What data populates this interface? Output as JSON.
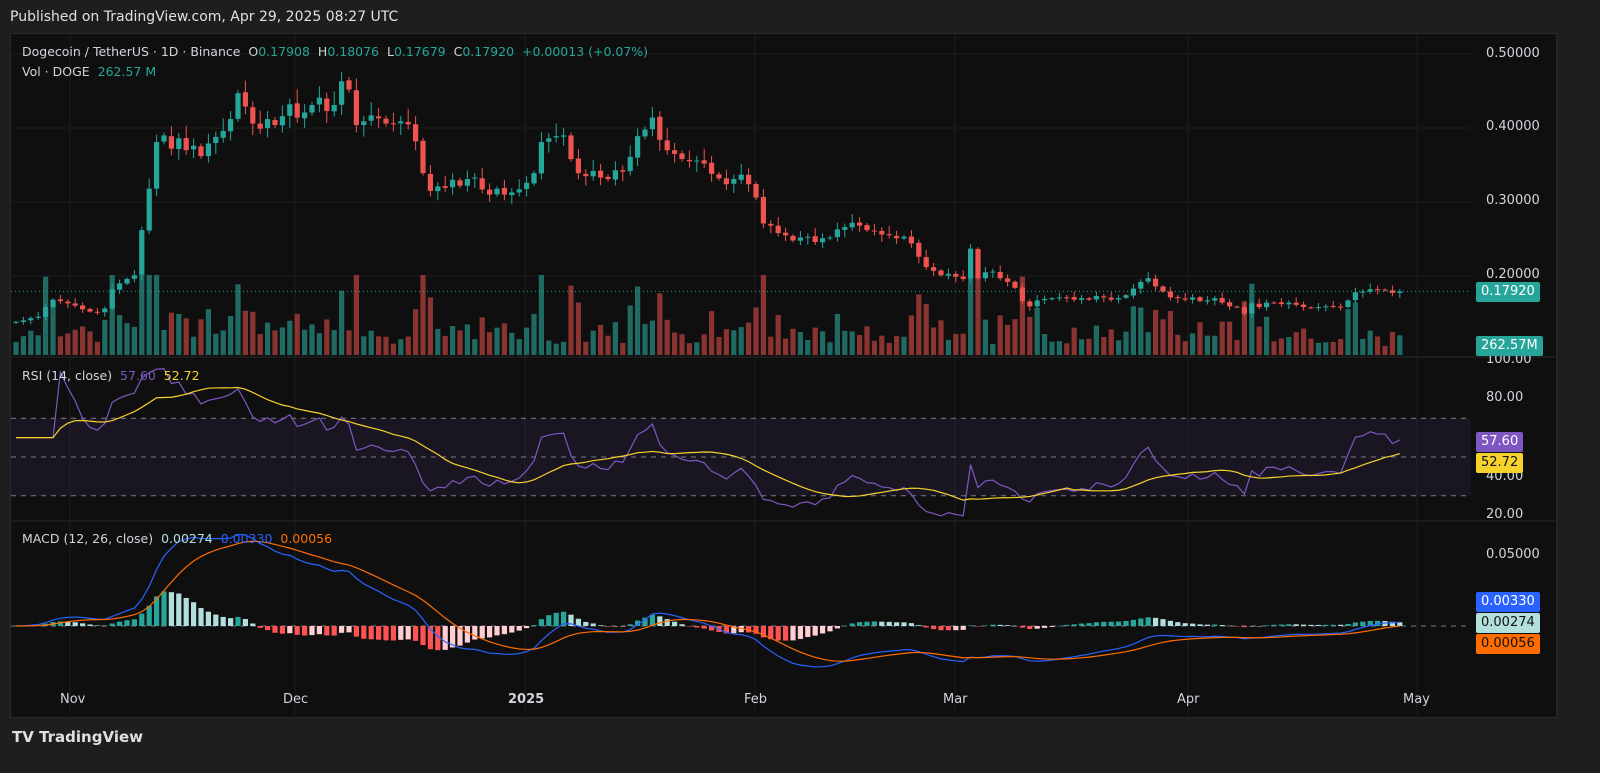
{
  "header": {
    "published": "Published on TradingView.com, Apr 29, 2025 08:27 UTC"
  },
  "legend": {
    "symbol": "Dogecoin / TetherUS · 1D · Binance",
    "o_label": "O",
    "o": "0.17908",
    "h_label": "H",
    "h": "0.18076",
    "l_label": "L",
    "l": "0.17679",
    "c_label": "C",
    "c": "0.17920",
    "change": "+0.00013 (+0.07%)",
    "vol_label": "Vol · DOGE",
    "vol": "262.57 M",
    "rsi_label": "RSI (14, close)",
    "rsi": "57.60",
    "rsi_ma": "52.72",
    "macd_label": "MACD (12, 26, close)",
    "macd_hist": "0.00274",
    "macd": "0.00330",
    "macd_signal": "0.00056"
  },
  "tags": {
    "price": "0.17920",
    "volume": "262.57M",
    "rsi": "57.60",
    "rsi_ma": "52.72",
    "macd": "0.00330",
    "hist": "0.00274",
    "signal": "0.00056"
  },
  "colors": {
    "up": "#26a69a",
    "down": "#ef5350",
    "rsi": "#7e57c2",
    "rsi_ma": "#f7d22c",
    "macd": "#2962ff",
    "signal": "#ff6d00"
  },
  "footer": {
    "brand": "TradingView"
  },
  "chart_data": {
    "type": "candlestick",
    "title": "Dogecoin / TetherUS · 1D · Binance",
    "start_date": "2024-10-24",
    "end_date": "2025-04-29",
    "price_ticks": [
      "0.50000",
      "0.40000",
      "0.30000",
      "0.20000"
    ],
    "rsi_ticks": [
      "100.00",
      "80.00",
      "40.00",
      "20.00"
    ],
    "macd_ticks": [
      "0.05000"
    ],
    "x_ticks": [
      "Nov",
      "Dec",
      "2025",
      "Feb",
      "Mar",
      "Apr",
      "May"
    ],
    "ylim": [
      0.13,
      0.5
    ],
    "closes": [
      0.138,
      0.14,
      0.143,
      0.145,
      0.158,
      0.168,
      0.166,
      0.163,
      0.16,
      0.155,
      0.152,
      0.151,
      0.156,
      0.182,
      0.19,
      0.196,
      0.201,
      0.262,
      0.318,
      0.381,
      0.39,
      0.372,
      0.386,
      0.37,
      0.376,
      0.362,
      0.379,
      0.388,
      0.396,
      0.412,
      0.447,
      0.429,
      0.406,
      0.399,
      0.412,
      0.404,
      0.416,
      0.432,
      0.414,
      0.421,
      0.431,
      0.441,
      0.423,
      0.431,
      0.463,
      0.452,
      0.404,
      0.409,
      0.417,
      0.413,
      0.406,
      0.405,
      0.409,
      0.405,
      0.382,
      0.339,
      0.315,
      0.321,
      0.319,
      0.33,
      0.322,
      0.331,
      0.333,
      0.317,
      0.31,
      0.318,
      0.31,
      0.313,
      0.317,
      0.326,
      0.339,
      0.381,
      0.386,
      0.389,
      0.39,
      0.358,
      0.339,
      0.335,
      0.342,
      0.333,
      0.331,
      0.343,
      0.341,
      0.361,
      0.389,
      0.398,
      0.414,
      0.384,
      0.37,
      0.365,
      0.358,
      0.355,
      0.356,
      0.352,
      0.338,
      0.332,
      0.324,
      0.331,
      0.337,
      0.324,
      0.306,
      0.271,
      0.268,
      0.258,
      0.255,
      0.248,
      0.252,
      0.253,
      0.246,
      0.251,
      0.252,
      0.263,
      0.266,
      0.272,
      0.268,
      0.262,
      0.261,
      0.256,
      0.255,
      0.251,
      0.253,
      0.244,
      0.226,
      0.212,
      0.207,
      0.201,
      0.203,
      0.199,
      0.196,
      0.237,
      0.197,
      0.205,
      0.206,
      0.197,
      0.192,
      0.184,
      0.166,
      0.159,
      0.167,
      0.169,
      0.17,
      0.171,
      0.171,
      0.168,
      0.17,
      0.168,
      0.173,
      0.171,
      0.168,
      0.17,
      0.174,
      0.183,
      0.192,
      0.197,
      0.186,
      0.179,
      0.171,
      0.17,
      0.168,
      0.171,
      0.166,
      0.167,
      0.17,
      0.164,
      0.159,
      0.158,
      0.149,
      0.163,
      0.158,
      0.164,
      0.164,
      0.162,
      0.164,
      0.161,
      0.158,
      0.157,
      0.158,
      0.159,
      0.159,
      0.158,
      0.167,
      0.178,
      0.179,
      0.182,
      0.181,
      0.181,
      0.177,
      0.1792
    ]
  }
}
